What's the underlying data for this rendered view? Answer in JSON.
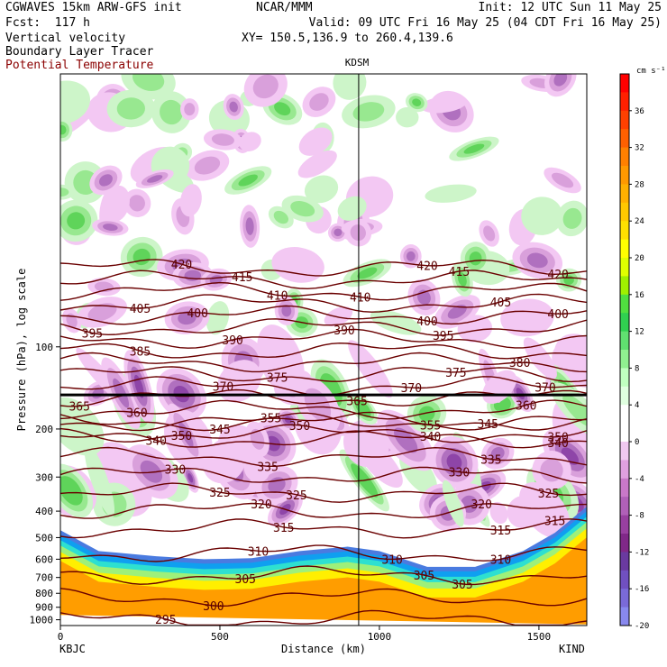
{
  "header": {
    "model": "CGWAVES 15km ARW-GFS init",
    "forecast": "Fcst:  117 h",
    "field1": "Vertical velocity",
    "field2": "Boundary Layer Tracer",
    "field3": "Potential Temperature",
    "org": "NCAR/MMM",
    "init": "Init: 12 UTC Sun 11 May 25",
    "valid": "Valid: 09 UTC Fri 16 May 25 (04 CDT Fri 16 May 25)",
    "xy": "XY= 150.5,136.9 to 260.4,139.6",
    "field3_color": "#8b0000"
  },
  "chart_data": {
    "type": "cross-section",
    "title": "KDSM",
    "xlabel": "Distance (km)",
    "ylabel": "Pressure (hPa), log scale",
    "xlim": [
      0,
      1650
    ],
    "ylim": [
      1050,
      10
    ],
    "yscale": "log",
    "x_ticks": [
      0,
      500,
      1000,
      1500
    ],
    "y_ticks": [
      100,
      200,
      300,
      400,
      500,
      600,
      700,
      800,
      900,
      1000
    ],
    "left_station": "KBJC",
    "right_station": "KIND",
    "vertical_marker_km": 935,
    "tropopause_hpa": 150,
    "colorbar": {
      "units": "cm s⁻¹",
      "labels": [
        36,
        32,
        28,
        24,
        20,
        16,
        12,
        8,
        4,
        0,
        -4,
        -8,
        -12,
        -16,
        -20
      ],
      "colors": [
        "#ff0000",
        "#ff2000",
        "#ff4000",
        "#ff6000",
        "#ff8000",
        "#ff9900",
        "#ffb000",
        "#ffc800",
        "#ffe000",
        "#ffff00",
        "#e0ff00",
        "#a0f000",
        "#50e040",
        "#30d050",
        "#60e070",
        "#90f090",
        "#c0ffc0",
        "#e0ffe0",
        "#ffffff",
        "#ffffff",
        "#f0c8f0",
        "#e0a0e0",
        "#c878c8",
        "#b060b8",
        "#9840a0",
        "#802888",
        "#6a3aa0",
        "#7050c0",
        "#7a6ad8",
        "#8888ee"
      ]
    },
    "series": [
      {
        "name": "Potential Temperature",
        "contours": [
          {
            "level": 295,
            "label_x": [
              330
            ]
          },
          {
            "level": 300,
            "label_x": [
              480
            ]
          },
          {
            "level": 305,
            "label_x": [
              580,
              1140,
              1260
            ]
          },
          {
            "level": 310,
            "label_x": [
              620,
              1040,
              1380
            ]
          },
          {
            "level": 315,
            "label_x": [
              700,
              1380,
              1550
            ]
          },
          {
            "level": 320,
            "label_x": [
              630,
              1320
            ]
          },
          {
            "level": 325,
            "label_x": [
              500,
              740,
              1530
            ]
          },
          {
            "level": 330,
            "label_x": [
              360,
              1250
            ]
          },
          {
            "level": 335,
            "label_x": [
              650,
              1350
            ]
          },
          {
            "level": 340,
            "label_x": [
              300,
              1160,
              1560
            ]
          },
          {
            "level": 345,
            "label_x": [
              500,
              1340
            ]
          },
          {
            "level": 350,
            "label_x": [
              380,
              750,
              1560
            ]
          },
          {
            "level": 355,
            "label_x": [
              660,
              1160
            ]
          },
          {
            "level": 360,
            "label_x": [
              240,
              1460
            ]
          },
          {
            "level": 365,
            "label_x": [
              60,
              930
            ]
          },
          {
            "level": 370,
            "label_x": [
              510,
              1100,
              1520
            ]
          },
          {
            "level": 375,
            "label_x": [
              680,
              1240
            ]
          },
          {
            "level": 380,
            "label_x": [
              1440
            ]
          },
          {
            "level": 385,
            "label_x": [
              250
            ]
          },
          {
            "level": 390,
            "label_x": [
              540,
              890
            ]
          },
          {
            "level": 395,
            "label_x": [
              100,
              1200
            ]
          },
          {
            "level": 400,
            "label_x": [
              430,
              1150,
              1560
            ]
          },
          {
            "level": 405,
            "label_x": [
              250,
              1380
            ]
          },
          {
            "level": 410,
            "label_x": [
              680,
              940
            ]
          },
          {
            "level": 415,
            "label_x": [
              570,
              1250
            ]
          },
          {
            "level": 420,
            "label_x": [
              380,
              1150,
              1560
            ]
          }
        ]
      }
    ]
  }
}
